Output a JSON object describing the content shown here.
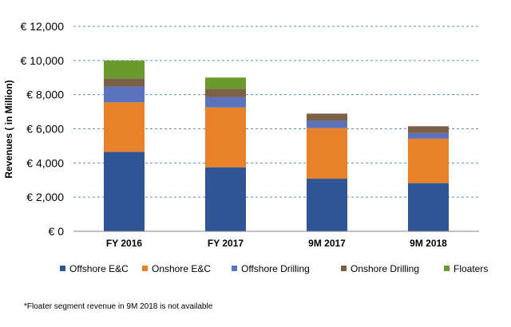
{
  "chart_data": {
    "type": "bar",
    "stacked": true,
    "title": "",
    "xlabel": "",
    "ylabel": "Revenues ( in Million)",
    "ylim": [
      0,
      12000
    ],
    "yticks": [
      0,
      2000,
      4000,
      6000,
      8000,
      10000,
      12000
    ],
    "ytick_labels": [
      "€ 0",
      "€ 2,000",
      "€ 4,000",
      "€ 6,000",
      "€ 8,000",
      "€ 10,000",
      "€ 12,000"
    ],
    "categories": [
      "FY 2016",
      "FY 2017",
      "9M 2017",
      "9M 2018"
    ],
    "series": [
      {
        "name": "Offshore E&C",
        "color": "#2F5597",
        "values": [
          4650,
          3750,
          3080,
          2820
        ]
      },
      {
        "name": "Onshore E&C",
        "color": "#E8812A",
        "values": [
          2900,
          3500,
          2970,
          2600
        ]
      },
      {
        "name": "Offshore Drilling",
        "color": "#5B72BE",
        "values": [
          920,
          600,
          420,
          330
        ]
      },
      {
        "name": "Onshore Drilling",
        "color": "#7B6048",
        "values": [
          480,
          480,
          420,
          400
        ]
      },
      {
        "name": "Floaters",
        "color": "#6A9A2E",
        "values": [
          1050,
          670,
          0,
          0
        ]
      }
    ],
    "grid": true,
    "legend_position": "bottom"
  },
  "footnote": "*Floater segment revenue in 9M 2018  is not available"
}
